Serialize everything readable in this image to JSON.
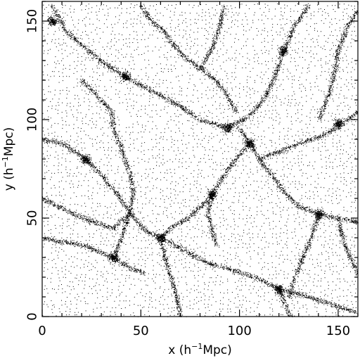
{
  "chart_data": {
    "type": "scatter",
    "title": "",
    "xlabel_main": "x (h",
    "xlabel_sup": "−1",
    "xlabel_tail": "Mpc)",
    "ylabel_main": "y (h",
    "ylabel_sup": "−1",
    "ylabel_tail": "Mpc)",
    "xlim": [
      0,
      160
    ],
    "ylim": [
      0,
      160
    ],
    "x_ticks": [
      0,
      50,
      100,
      150
    ],
    "y_ticks": [
      0,
      50,
      100,
      150
    ],
    "x_tick_labels": [
      "0",
      "50",
      "100",
      "150"
    ],
    "y_tick_labels": [
      "0",
      "50",
      "100",
      "150"
    ],
    "grid": false,
    "legend": "none",
    "marker_color": "#000000",
    "series": [
      {
        "description_of_points": "particle positions forming a cosmic web of filaments and voids",
        "filaments": [
          [
            [
              5,
              158
            ],
            [
              12,
              145
            ],
            [
              20,
              138
            ],
            [
              32,
              128
            ],
            [
              42,
              122
            ]
          ],
          [
            [
              42,
              122
            ],
            [
              55,
              115
            ],
            [
              68,
              108
            ],
            [
              80,
              100
            ],
            [
              94,
              96
            ]
          ],
          [
            [
              94,
              96
            ],
            [
              105,
              102
            ],
            [
              112,
              110
            ],
            [
              118,
              122
            ],
            [
              122,
              135
            ],
            [
              128,
              148
            ],
            [
              135,
              158
            ]
          ],
          [
            [
              0,
              90
            ],
            [
              10,
              88
            ],
            [
              22,
              80
            ],
            [
              30,
              72
            ],
            [
              38,
              62
            ],
            [
              45,
              52
            ],
            [
              52,
              44
            ],
            [
              60,
              40
            ],
            [
              72,
              34
            ],
            [
              82,
              28
            ],
            [
              95,
              24
            ],
            [
              108,
              20
            ],
            [
              120,
              14
            ],
            [
              135,
              10
            ],
            [
              150,
              5
            ],
            [
              160,
              2
            ]
          ],
          [
            [
              36,
              30
            ],
            [
              40,
              40
            ],
            [
              44,
              52
            ],
            [
              46,
              62
            ],
            [
              44,
              74
            ],
            [
              40,
              85
            ],
            [
              36,
              96
            ]
          ],
          [
            [
              60,
              40
            ],
            [
              62,
              30
            ],
            [
              65,
              20
            ],
            [
              68,
              10
            ],
            [
              70,
              0
            ]
          ],
          [
            [
              100,
              96
            ],
            [
              105,
              88
            ],
            [
              110,
              80
            ],
            [
              116,
              72
            ],
            [
              122,
              64
            ],
            [
              130,
              56
            ],
            [
              140,
              52
            ],
            [
              150,
              50
            ],
            [
              160,
              48
            ]
          ],
          [
            [
              105,
              88
            ],
            [
              98,
              80
            ],
            [
              92,
              72
            ],
            [
              86,
              62
            ],
            [
              84,
              52
            ],
            [
              86,
              44
            ],
            [
              88,
              36
            ]
          ],
          [
            [
              110,
              80
            ],
            [
              120,
              84
            ],
            [
              130,
              88
            ],
            [
              142,
              92
            ],
            [
              152,
              98
            ],
            [
              160,
              104
            ]
          ],
          [
            [
              0,
              40
            ],
            [
              10,
              38
            ],
            [
              22,
              36
            ],
            [
              36,
              30
            ],
            [
              44,
              25
            ],
            [
              52,
              22
            ]
          ],
          [
            [
              60,
              40
            ],
            [
              66,
              46
            ],
            [
              74,
              50
            ],
            [
              80,
              56
            ],
            [
              86,
              62
            ]
          ],
          [
            [
              125,
              10
            ],
            [
              128,
              20
            ],
            [
              132,
              30
            ],
            [
              136,
              40
            ],
            [
              140,
              52
            ]
          ],
          [
            [
              140,
              100
            ],
            [
              145,
              112
            ],
            [
              148,
              124
            ],
            [
              150,
              136
            ],
            [
              155,
              148
            ],
            [
              160,
              156
            ]
          ],
          [
            [
              65,
              140
            ],
            [
              72,
              132
            ],
            [
              80,
              126
            ],
            [
              88,
              120
            ],
            [
              94,
              112
            ],
            [
              98,
              104
            ]
          ],
          [
            [
              20,
              120
            ],
            [
              28,
              112
            ],
            [
              35,
              104
            ],
            [
              36,
              96
            ]
          ],
          [
            [
              0,
              60
            ],
            [
              8,
              56
            ],
            [
              16,
              52
            ],
            [
              26,
              48
            ],
            [
              36,
              45
            ],
            [
              44,
              52
            ]
          ],
          [
            [
              150,
              50
            ],
            [
              152,
              40
            ],
            [
              156,
              30
            ],
            [
              160,
              22
            ]
          ],
          [
            [
              120,
              14
            ],
            [
              124,
              4
            ],
            [
              126,
              0
            ]
          ],
          [
            [
              80,
              126
            ],
            [
              86,
              136
            ],
            [
              90,
              148
            ],
            [
              92,
              158
            ]
          ],
          [
            [
              50,
              158
            ],
            [
              55,
              150
            ],
            [
              62,
              145
            ],
            [
              65,
              140
            ]
          ]
        ],
        "knots": [
          [
            42,
            122
          ],
          [
            94,
            96
          ],
          [
            36,
            30
          ],
          [
            60,
            40
          ],
          [
            105,
            88
          ],
          [
            140,
            52
          ],
          [
            120,
            14
          ],
          [
            122,
            135
          ],
          [
            22,
            80
          ],
          [
            86,
            62
          ],
          [
            150,
            98
          ],
          [
            5,
            150
          ]
        ]
      }
    ]
  }
}
